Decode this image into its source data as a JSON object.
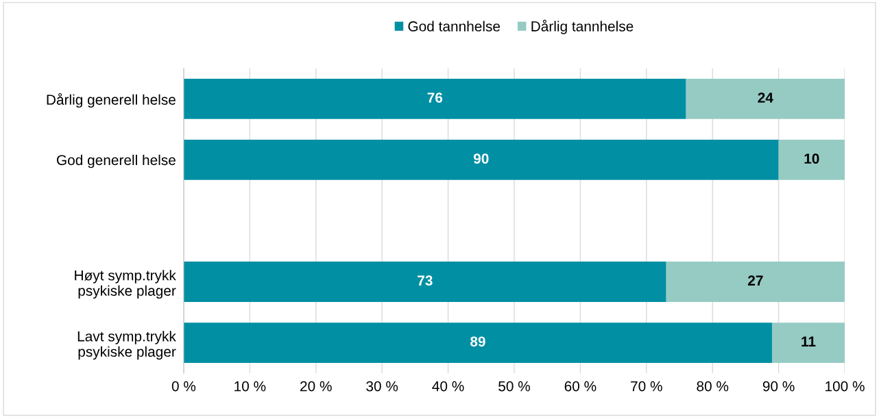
{
  "chart_data": {
    "type": "bar",
    "orientation": "horizontal",
    "stacked": true,
    "categories": [
      "Dårlig generell helse",
      "God generell helse",
      null,
      "Høyt symp.trykk\npsykiske plager",
      "Lavt symp.trykk\npsykiske plager"
    ],
    "series": [
      {
        "name": "God tannhelse",
        "color": "#008fa3",
        "values": [
          76,
          90,
          null,
          73,
          89
        ]
      },
      {
        "name": "Dårlig tannhelse",
        "color": "#96cbc4",
        "values": [
          24,
          10,
          null,
          27,
          11
        ]
      }
    ],
    "xlim": [
      0,
      100
    ],
    "xticks": [
      {
        "value": 0,
        "label": "0 %"
      },
      {
        "value": 10,
        "label": "10 %"
      },
      {
        "value": 20,
        "label": "20 %"
      },
      {
        "value": 30,
        "label": "30 %"
      },
      {
        "value": 40,
        "label": "40 %"
      },
      {
        "value": 50,
        "label": "50 %"
      },
      {
        "value": 60,
        "label": "60 %"
      },
      {
        "value": 70,
        "label": "70 %"
      },
      {
        "value": 80,
        "label": "80 %"
      },
      {
        "value": 90,
        "label": "90 %"
      },
      {
        "value": 100,
        "label": "100 %"
      }
    ],
    "grid": "x",
    "legend": "top",
    "data_labels": true
  }
}
